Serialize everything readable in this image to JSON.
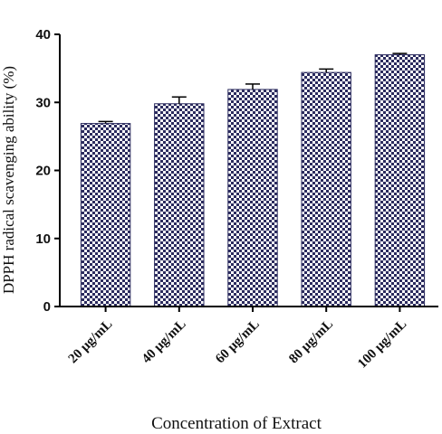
{
  "chart_data": {
    "type": "bar",
    "title": "",
    "xlabel": "Concentration of Extract",
    "ylabel": "DPPH radical scavenging ability (%)",
    "categories": [
      "20 μg/mL",
      "40 μg/mL",
      "60 μg/mL",
      "80 μg/mL",
      "100 μg/mL"
    ],
    "values": [
      26.9,
      29.8,
      31.9,
      34.4,
      37.0
    ],
    "errors": [
      0.3,
      1.0,
      0.8,
      0.5,
      0.2
    ],
    "ylim": [
      0,
      40
    ],
    "yticks": [
      0,
      10,
      20,
      30,
      40
    ],
    "grid": false,
    "bar_pattern": "checkerboard",
    "colors": {
      "bar_dark": "#2b2b5e",
      "bar_light": "#ffffff",
      "axis": "#000000"
    }
  }
}
